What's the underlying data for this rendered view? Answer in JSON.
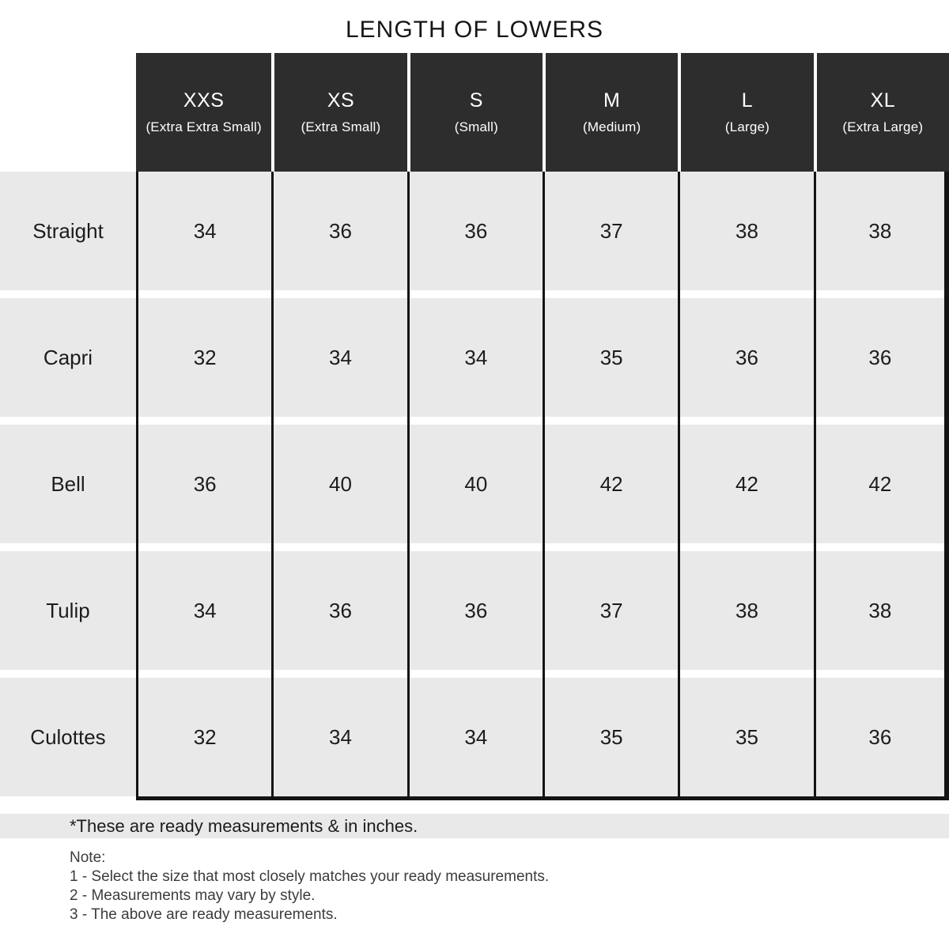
{
  "chart_data": {
    "type": "table",
    "title": "LENGTH OF LOWERS",
    "unit_note": "inches",
    "columns": [
      {
        "size": "XXS",
        "full": "(Extra Extra Small)"
      },
      {
        "size": "XS",
        "full": "(Extra Small)"
      },
      {
        "size": "S",
        "full": "(Small)"
      },
      {
        "size": "M",
        "full": "(Medium)"
      },
      {
        "size": "L",
        "full": "(Large)"
      },
      {
        "size": "XL",
        "full": "(Extra Large)"
      }
    ],
    "rows": [
      {
        "label": "Straight",
        "values": [
          "34",
          "36",
          "36",
          "37",
          "38",
          "38"
        ]
      },
      {
        "label": "Capri",
        "values": [
          "32",
          "34",
          "34",
          "35",
          "36",
          "36"
        ]
      },
      {
        "label": "Bell",
        "values": [
          "36",
          "40",
          "40",
          "42",
          "42",
          "42"
        ]
      },
      {
        "label": "Tulip",
        "values": [
          "34",
          "36",
          "36",
          "37",
          "38",
          "38"
        ]
      },
      {
        "label": "Culottes",
        "values": [
          "32",
          "34",
          "34",
          "35",
          "35",
          "36"
        ]
      }
    ]
  },
  "footnote": "*These are ready measurements & in inches.",
  "notes": {
    "heading": "Note:",
    "items": [
      "1 - Select the size that most closely matches your ready measurements.",
      "2 - Measurements may vary by style.",
      "3 - The above are ready measurements."
    ]
  },
  "colors": {
    "header_bg": "#2d2d2d",
    "header_text": "#ffffff",
    "row_bg": "#e9e9e9",
    "border": "#141414",
    "page_bg": "#ffffff"
  }
}
